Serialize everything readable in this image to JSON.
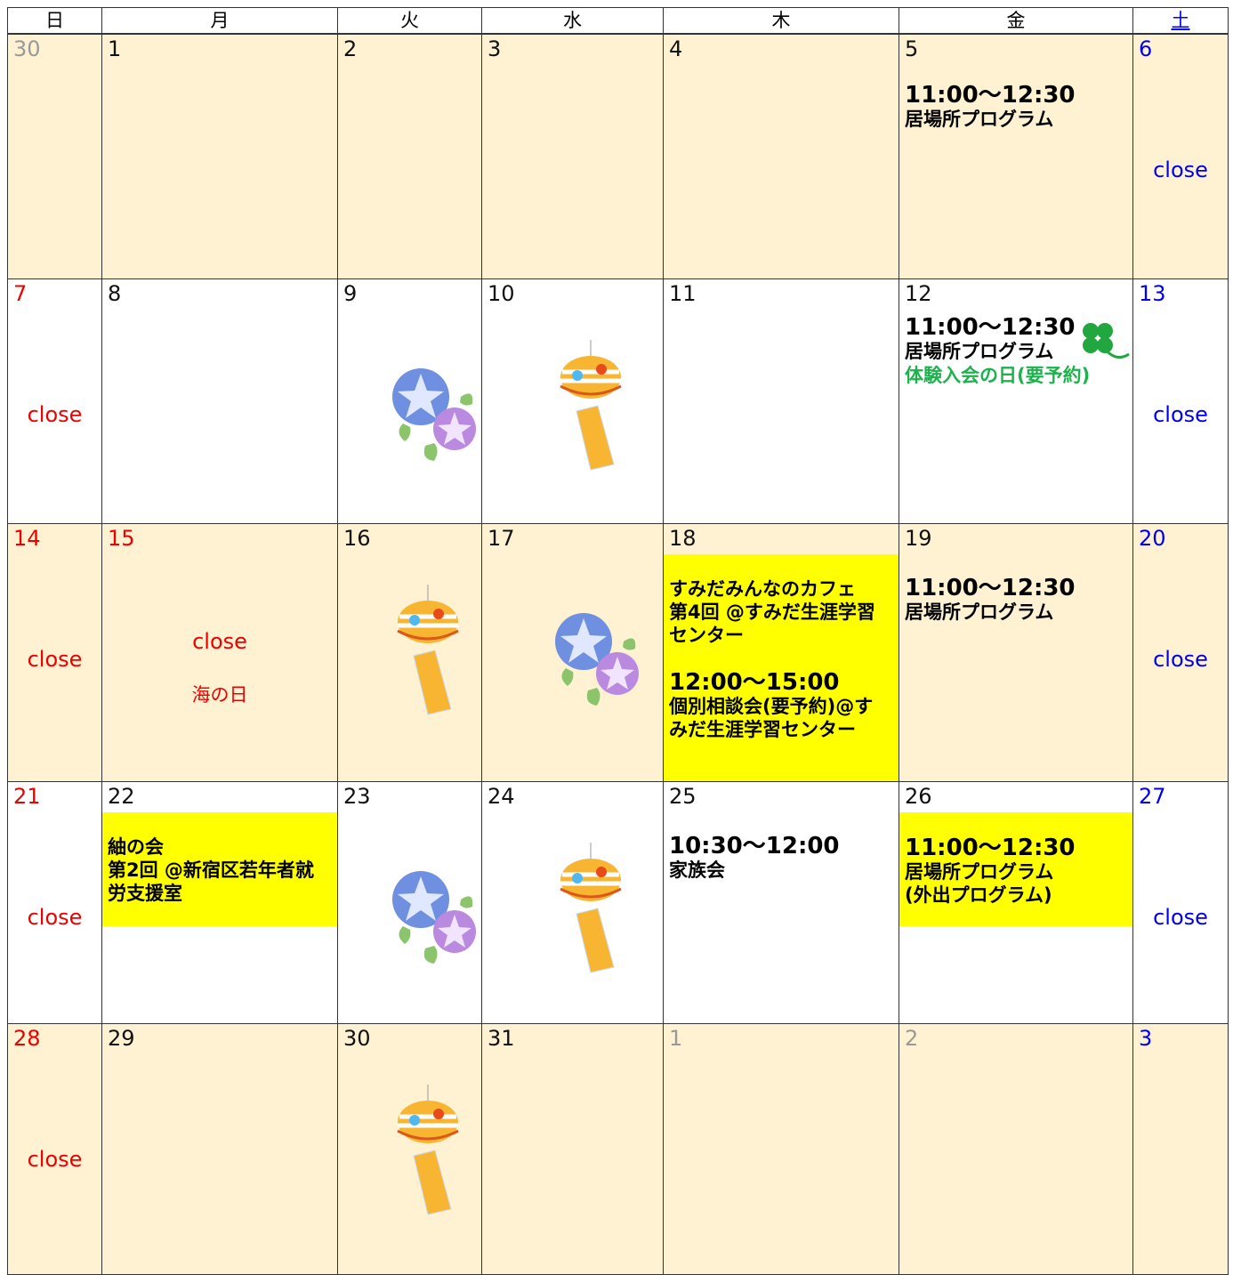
{
  "header": {
    "days": [
      "日",
      "月",
      "火",
      "水",
      "木",
      "金",
      "土"
    ]
  },
  "weeks": [
    [
      {
        "day": "30"
      },
      {
        "day": "1"
      },
      {
        "day": "2"
      },
      {
        "day": "3"
      },
      {
        "day": "4"
      },
      {
        "day": "5",
        "lines": [
          {
            "text": "11:00～12:30",
            "style": "time"
          },
          {
            "text": "居場所プログラム",
            "style": "title"
          }
        ]
      },
      {
        "day": "6",
        "close": "close"
      }
    ],
    [
      {
        "day": "7",
        "close": "close"
      },
      {
        "day": "8"
      },
      {
        "day": "9",
        "icon": "flower"
      },
      {
        "day": "10",
        "icon": "chime"
      },
      {
        "day": "11"
      },
      {
        "day": "12",
        "icon": "clover",
        "lines": [
          {
            "text": "11:00～12:30",
            "style": "time"
          },
          {
            "text": "居場所プログラム",
            "style": "title"
          },
          {
            "text": "体験入会の日(要予約)",
            "style": "green"
          }
        ]
      },
      {
        "day": "13",
        "close": "close"
      }
    ],
    [
      {
        "day": "14",
        "close": "close"
      },
      {
        "day": "15",
        "close": "close",
        "holiday": "海の日"
      },
      {
        "day": "16",
        "icon": "chime"
      },
      {
        "day": "17",
        "icon": "flower"
      },
      {
        "day": "18",
        "highlight": true,
        "lines": [
          {
            "text": "すみだみんなのカフェ",
            "style": "title"
          },
          {
            "text": "第4回 @すみだ生涯学習センター",
            "style": "title"
          },
          {
            "text": "12:00～15:00",
            "style": "time"
          },
          {
            "text": "個別相談会(要予約)@すみだ生涯学習センター",
            "style": "title"
          }
        ]
      },
      {
        "day": "19",
        "lines": [
          {
            "text": "11:00～12:30",
            "style": "time"
          },
          {
            "text": "居場所プログラム",
            "style": "title"
          }
        ]
      },
      {
        "day": "20",
        "close": "close"
      }
    ],
    [
      {
        "day": "21",
        "close": "close"
      },
      {
        "day": "22",
        "highlight": true,
        "lines": [
          {
            "text": "紬の会",
            "style": "title"
          },
          {
            "text": "第2回 @新宿区若年者就労支援室",
            "style": "title"
          }
        ]
      },
      {
        "day": "23",
        "icon": "flower"
      },
      {
        "day": "24",
        "icon": "chime"
      },
      {
        "day": "25",
        "lines": [
          {
            "text": "10:30～12:00",
            "style": "time"
          },
          {
            "text": "家族会",
            "style": "title"
          }
        ]
      },
      {
        "day": "26",
        "highlight": true,
        "lines": [
          {
            "text": "11:00～12:30",
            "style": "time"
          },
          {
            "text": "居場所プログラム",
            "style": "title"
          },
          {
            "text": "(外出プログラム)",
            "style": "title"
          }
        ]
      },
      {
        "day": "27",
        "close": "close"
      }
    ],
    [
      {
        "day": "28",
        "close": "close"
      },
      {
        "day": "29"
      },
      {
        "day": "30",
        "icon": "chime"
      },
      {
        "day": "31"
      },
      {
        "day": "1"
      },
      {
        "day": "2"
      },
      {
        "day": "3"
      }
    ]
  ]
}
